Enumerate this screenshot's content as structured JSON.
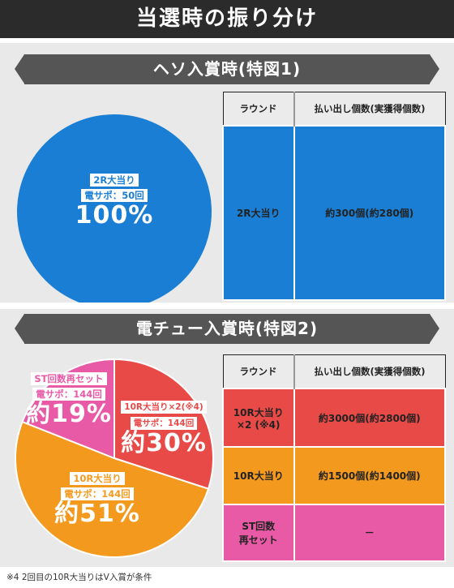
{
  "header": {
    "title": "当選時の振り分け"
  },
  "section1": {
    "banner": "ヘソ入賞時(特図1)",
    "pie": {
      "line1": "2R大当り",
      "line2": "電サポ：50回",
      "percent": "100%",
      "color": "#1a7fd4"
    },
    "table": {
      "col1": "ラウンド",
      "col2": "払い出し個数(実獲得個数)",
      "rows": [
        {
          "round": "2R大当り",
          "payout": "約300個(約280個)"
        }
      ]
    }
  },
  "section2": {
    "banner": "電チュー入賞時(特図2)",
    "slices": [
      {
        "line1": "10R大当り×2(※4)",
        "line2": "電サポ：144回",
        "percent": "約30%",
        "value": 30,
        "color": "#e84a47"
      },
      {
        "line1": "10R大当り",
        "line2": "電サポ：144回",
        "percent": "約51%",
        "value": 51,
        "color": "#f39a1e"
      },
      {
        "line1": "ST回数再セット",
        "line2": "電サポ：144回",
        "percent": "約19%",
        "value": 19,
        "color": "#e85aa6"
      }
    ],
    "table": {
      "col1": "ラウンド",
      "col2": "払い出し個数(実獲得個数)",
      "rows": [
        {
          "round1": "10R大当り",
          "round2": "×2 (※4)",
          "payout": "約3000個(約2800個)",
          "color": "#e84a47"
        },
        {
          "round1": "10R大当り",
          "round2": "",
          "payout": "約1500個(約1400個)",
          "color": "#f39a1e"
        },
        {
          "round1": "ST回数",
          "round2": "再セット",
          "payout": "－",
          "color": "#e85aa6"
        }
      ]
    }
  },
  "footnote": "※4  2回目の10R大当りはV入賞が条件"
}
